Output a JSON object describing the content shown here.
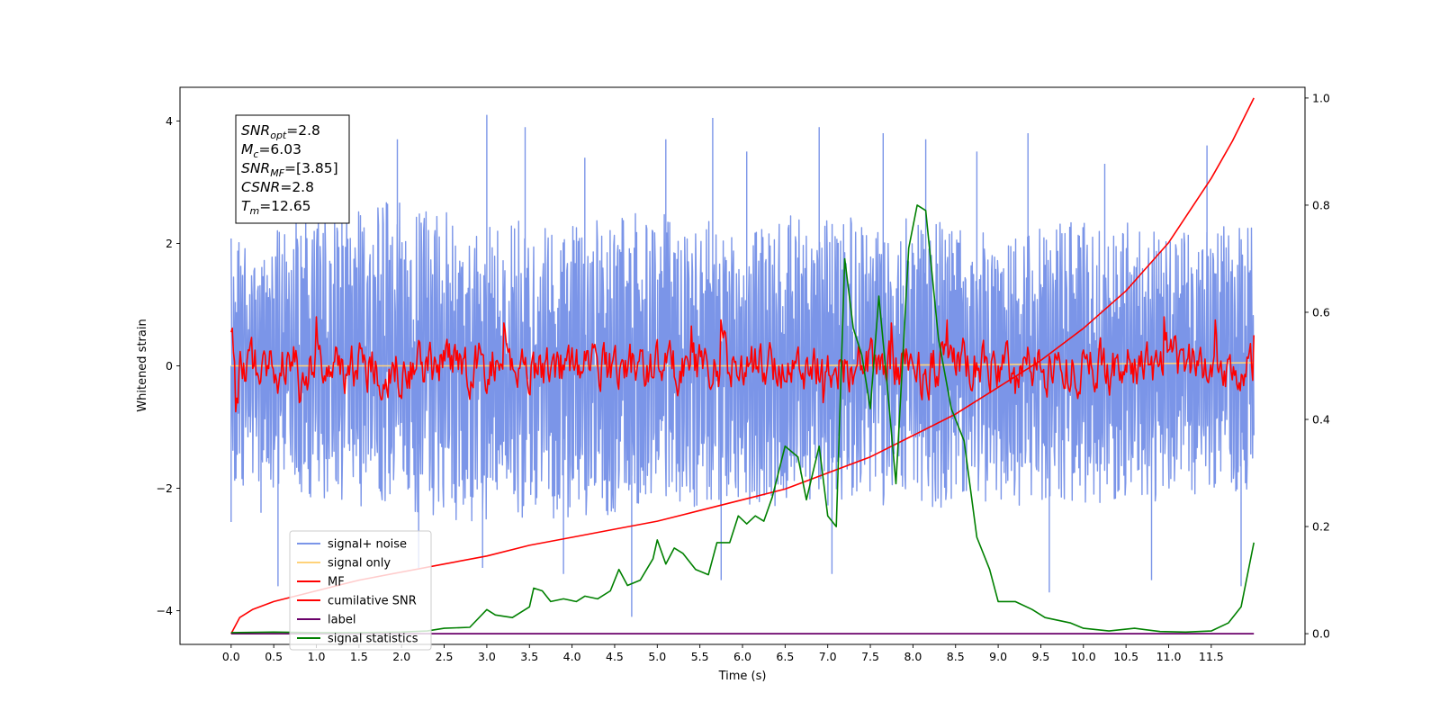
{
  "chart_data": {
    "type": "line",
    "xlabel": "Time (s)",
    "ylabel": "Whitened strain",
    "xlim": [
      -0.6,
      12.6
    ],
    "ylim": [
      -4.55,
      4.55
    ],
    "y2lim": [
      -0.02,
      1.02
    ],
    "x_ticks": [
      "0.0",
      "0.5",
      "1.0",
      "1.5",
      "2.0",
      "2.5",
      "3.0",
      "3.5",
      "4.0",
      "4.5",
      "5.0",
      "5.5",
      "6.0",
      "6.5",
      "7.0",
      "7.5",
      "8.0",
      "8.5",
      "9.0",
      "9.5",
      "10.0",
      "10.5",
      "11.0",
      "11.5"
    ],
    "y_ticks_left": [
      "−4",
      "−2",
      "0",
      "2",
      "4"
    ],
    "y_ticks_right": [
      "0.0",
      "0.2",
      "0.4",
      "0.6",
      "0.8",
      "1.0"
    ],
    "annotation": {
      "lines": [
        {
          "base": "SNR",
          "sub": "opt",
          "value": "=2.8"
        },
        {
          "base": "M",
          "sub": "c",
          "value": "=6.03"
        },
        {
          "base": "SNR",
          "sub": "MF",
          "value": "=[3.85]"
        },
        {
          "base": "CSNR",
          "sub": "",
          "value": "=2.8"
        },
        {
          "base": "T",
          "sub": "m",
          "value": "=12.65"
        }
      ]
    },
    "legend": {
      "placement": "lower-left",
      "entries": [
        {
          "label": "signal+ noise",
          "color": "#7b95e8"
        },
        {
          "label": "signal only",
          "color": "#ffd27a"
        },
        {
          "label": "MF",
          "color": "#ff0000"
        },
        {
          "label": "cumilative SNR",
          "color": "#ff0000"
        },
        {
          "label": "label",
          "color": "#6a006a"
        },
        {
          "label": "signal statistics",
          "color": "#008000"
        }
      ]
    },
    "series": [
      {
        "name": "signal+ noise",
        "axis": "left",
        "color": "#7b95e8",
        "kind": "noise",
        "t_range": [
          0.0,
          12.0
        ],
        "upper_envelope": [
          [
            0.0,
            2.1
          ],
          [
            1.0,
            2.5
          ],
          [
            2.0,
            2.7
          ],
          [
            3.0,
            2.4
          ],
          [
            4.0,
            2.3
          ],
          [
            5.0,
            2.6
          ],
          [
            6.0,
            2.4
          ],
          [
            7.0,
            2.5
          ],
          [
            8.0,
            2.4
          ],
          [
            9.0,
            2.3
          ],
          [
            10.0,
            2.4
          ],
          [
            11.0,
            2.3
          ],
          [
            12.0,
            2.3
          ]
        ],
        "lower_envelope": [
          [
            0.0,
            -1.9
          ],
          [
            1.0,
            -2.3
          ],
          [
            2.0,
            -2.4
          ],
          [
            3.0,
            -2.6
          ],
          [
            4.0,
            -2.5
          ],
          [
            5.0,
            -2.4
          ],
          [
            6.0,
            -2.3
          ],
          [
            7.0,
            -2.3
          ],
          [
            8.0,
            -2.3
          ],
          [
            9.0,
            -2.4
          ],
          [
            10.0,
            -2.3
          ],
          [
            11.0,
            -2.2
          ],
          [
            12.0,
            -2.0
          ]
        ],
        "spikes": [
          [
            0.0,
            -2.55
          ],
          [
            0.35,
            -2.4
          ],
          [
            0.55,
            -3.6
          ],
          [
            1.3,
            3.2
          ],
          [
            1.95,
            3.7
          ],
          [
            2.2,
            -3.3
          ],
          [
            3.0,
            4.1
          ],
          [
            2.95,
            -3.3
          ],
          [
            3.45,
            3.9
          ],
          [
            3.9,
            -3.4
          ],
          [
            4.15,
            3.4
          ],
          [
            4.7,
            -4.1
          ],
          [
            5.1,
            3.7
          ],
          [
            5.65,
            4.05
          ],
          [
            5.75,
            -3.5
          ],
          [
            6.05,
            3.5
          ],
          [
            6.9,
            3.9
          ],
          [
            7.05,
            -3.4
          ],
          [
            7.65,
            3.8
          ],
          [
            8.15,
            3.7
          ],
          [
            8.75,
            3.5
          ],
          [
            9.35,
            3.8
          ],
          [
            9.6,
            -3.7
          ],
          [
            10.25,
            3.3
          ],
          [
            10.8,
            -3.5
          ],
          [
            11.45,
            3.6
          ],
          [
            11.85,
            -3.6
          ]
        ]
      },
      {
        "name": "signal only",
        "axis": "left",
        "color": "#ffd27a",
        "points": [
          [
            0.0,
            0.0
          ],
          [
            6.0,
            0.0
          ],
          [
            9.0,
            0.02
          ],
          [
            11.0,
            0.04
          ],
          [
            12.0,
            0.05
          ]
        ]
      },
      {
        "name": "MF",
        "axis": "left",
        "color": "#ff0000",
        "kind": "noise",
        "t_range": [
          0.0,
          12.0
        ],
        "start_value": 0.55,
        "amplitude": 0.32,
        "peaks": [
          [
            0.0,
            1.0
          ],
          [
            1.0,
            0.8
          ],
          [
            3.2,
            0.7
          ],
          [
            5.4,
            0.65
          ],
          [
            5.75,
            0.75
          ],
          [
            7.75,
            0.7
          ],
          [
            8.4,
            0.75
          ],
          [
            10.95,
            0.8
          ],
          [
            11.55,
            0.75
          ],
          [
            12.0,
            0.5
          ]
        ],
        "troughs": [
          [
            0.05,
            -0.75
          ],
          [
            0.8,
            -0.6
          ],
          [
            3.0,
            -0.45
          ],
          [
            6.95,
            -0.6
          ],
          [
            8.1,
            -0.45
          ],
          [
            9.2,
            -0.45
          ]
        ]
      },
      {
        "name": "cumilative SNR",
        "axis": "right",
        "color": "#ff0000",
        "points": [
          [
            0.0,
            0.0
          ],
          [
            0.1,
            0.03
          ],
          [
            0.25,
            0.045
          ],
          [
            0.5,
            0.06
          ],
          [
            1.0,
            0.08
          ],
          [
            1.5,
            0.1
          ],
          [
            2.0,
            0.115
          ],
          [
            2.5,
            0.13
          ],
          [
            3.0,
            0.145
          ],
          [
            3.5,
            0.165
          ],
          [
            4.0,
            0.18
          ],
          [
            4.5,
            0.195
          ],
          [
            5.0,
            0.21
          ],
          [
            5.5,
            0.23
          ],
          [
            6.0,
            0.25
          ],
          [
            6.5,
            0.27
          ],
          [
            7.0,
            0.3
          ],
          [
            7.5,
            0.33
          ],
          [
            8.0,
            0.37
          ],
          [
            8.5,
            0.41
          ],
          [
            9.0,
            0.46
          ],
          [
            9.5,
            0.51
          ],
          [
            10.0,
            0.57
          ],
          [
            10.5,
            0.64
          ],
          [
            11.0,
            0.73
          ],
          [
            11.5,
            0.85
          ],
          [
            11.75,
            0.92
          ],
          [
            12.0,
            1.0
          ]
        ]
      },
      {
        "name": "label",
        "axis": "right",
        "color": "#6a006a",
        "points": [
          [
            0.0,
            0.0
          ],
          [
            12.0,
            0.0
          ]
        ]
      },
      {
        "name": "signal statistics",
        "axis": "right",
        "color": "#008000",
        "points": [
          [
            0.0,
            0.002
          ],
          [
            0.5,
            0.003
          ],
          [
            1.0,
            0.002
          ],
          [
            1.5,
            0.002
          ],
          [
            2.0,
            0.003
          ],
          [
            2.3,
            0.005
          ],
          [
            2.5,
            0.01
          ],
          [
            2.8,
            0.012
          ],
          [
            3.0,
            0.045
          ],
          [
            3.1,
            0.035
          ],
          [
            3.3,
            0.03
          ],
          [
            3.5,
            0.05
          ],
          [
            3.55,
            0.085
          ],
          [
            3.65,
            0.08
          ],
          [
            3.75,
            0.06
          ],
          [
            3.9,
            0.065
          ],
          [
            4.05,
            0.06
          ],
          [
            4.15,
            0.07
          ],
          [
            4.3,
            0.065
          ],
          [
            4.45,
            0.08
          ],
          [
            4.55,
            0.12
          ],
          [
            4.65,
            0.09
          ],
          [
            4.8,
            0.1
          ],
          [
            4.95,
            0.14
          ],
          [
            5.0,
            0.175
          ],
          [
            5.1,
            0.13
          ],
          [
            5.2,
            0.16
          ],
          [
            5.3,
            0.15
          ],
          [
            5.45,
            0.12
          ],
          [
            5.6,
            0.11
          ],
          [
            5.7,
            0.17
          ],
          [
            5.85,
            0.17
          ],
          [
            5.95,
            0.22
          ],
          [
            6.05,
            0.205
          ],
          [
            6.15,
            0.22
          ],
          [
            6.25,
            0.21
          ],
          [
            6.35,
            0.255
          ],
          [
            6.5,
            0.35
          ],
          [
            6.65,
            0.33
          ],
          [
            6.75,
            0.25
          ],
          [
            6.9,
            0.35
          ],
          [
            7.0,
            0.22
          ],
          [
            7.1,
            0.2
          ],
          [
            7.2,
            0.7
          ],
          [
            7.3,
            0.57
          ],
          [
            7.4,
            0.52
          ],
          [
            7.5,
            0.42
          ],
          [
            7.6,
            0.63
          ],
          [
            7.7,
            0.46
          ],
          [
            7.8,
            0.28
          ],
          [
            7.95,
            0.72
          ],
          [
            8.05,
            0.8
          ],
          [
            8.15,
            0.79
          ],
          [
            8.3,
            0.55
          ],
          [
            8.45,
            0.42
          ],
          [
            8.6,
            0.36
          ],
          [
            8.75,
            0.18
          ],
          [
            8.9,
            0.12
          ],
          [
            9.0,
            0.06
          ],
          [
            9.2,
            0.06
          ],
          [
            9.4,
            0.045
          ],
          [
            9.55,
            0.03
          ],
          [
            9.7,
            0.025
          ],
          [
            9.85,
            0.02
          ],
          [
            10.0,
            0.01
          ],
          [
            10.3,
            0.005
          ],
          [
            10.6,
            0.01
          ],
          [
            10.9,
            0.004
          ],
          [
            11.2,
            0.003
          ],
          [
            11.5,
            0.005
          ],
          [
            11.7,
            0.02
          ],
          [
            11.85,
            0.05
          ],
          [
            12.0,
            0.17
          ]
        ]
      }
    ]
  }
}
